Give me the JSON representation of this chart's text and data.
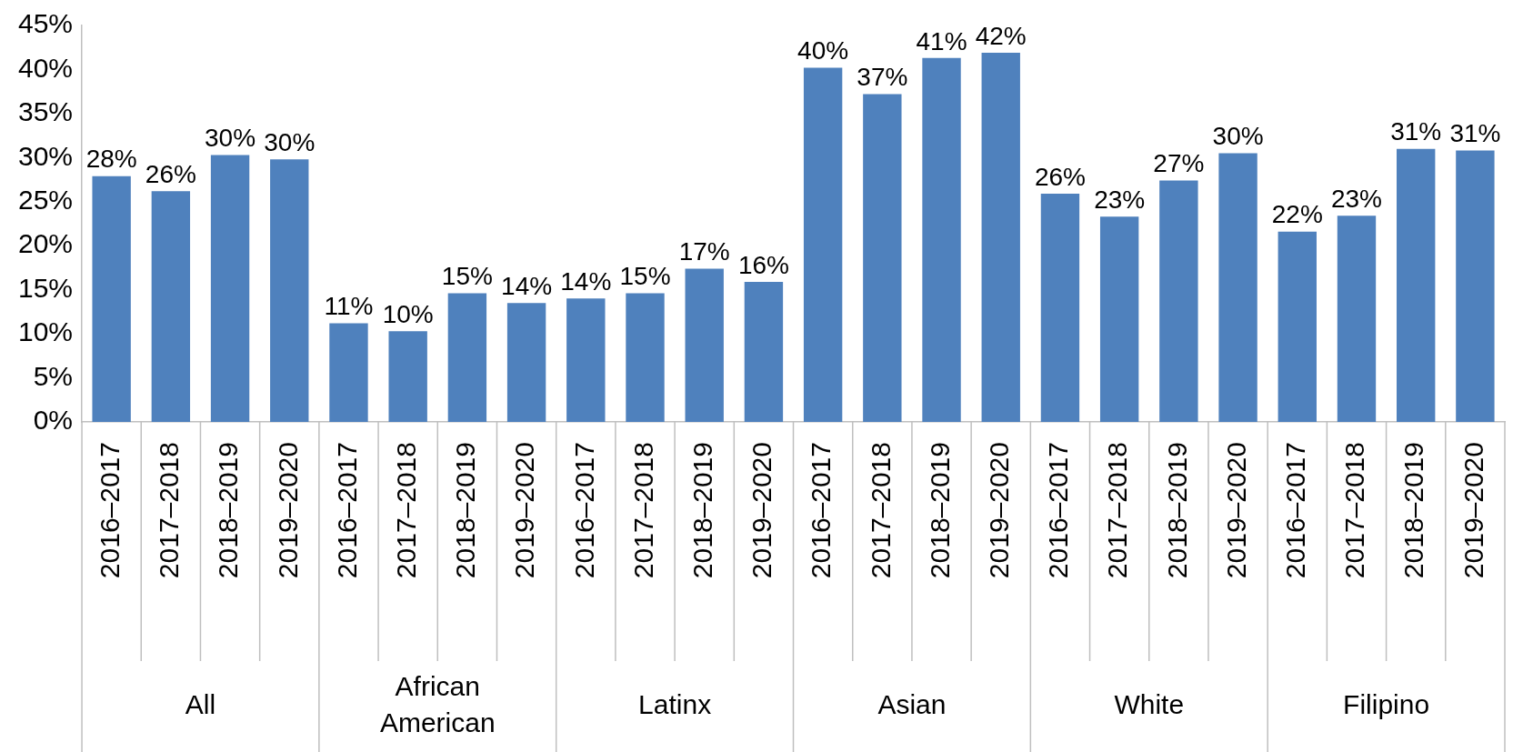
{
  "chart_data": {
    "type": "bar",
    "categories": [
      "2016–2017",
      "2017–2018",
      "2018–2019",
      "2019–2020",
      "2016–2017",
      "2017–2018",
      "2018–2019",
      "2019–2020",
      "2016–2017",
      "2017–2018",
      "2018–2019",
      "2019–2020",
      "2016–2017",
      "2017–2018",
      "2018–2019",
      "2019–2020",
      "2016–2017",
      "2017–2018",
      "2018–2019",
      "2019–2020",
      "2016–2017",
      "2017–2018",
      "2018–2019",
      "2019–2020"
    ],
    "values": [
      27.9,
      26.2,
      30.3,
      29.8,
      11.2,
      10.3,
      14.6,
      13.5,
      14.0,
      14.6,
      17.4,
      15.9,
      40.2,
      37.2,
      41.3,
      41.9,
      25.9,
      23.3,
      27.4,
      30.5,
      21.6,
      23.4,
      31.0,
      30.8
    ],
    "value_labels": [
      "28%",
      "26%",
      "30%",
      "30%",
      "11%",
      "10%",
      "15%",
      "14%",
      "14%",
      "15%",
      "17%",
      "16%",
      "40%",
      "37%",
      "41%",
      "42%",
      "26%",
      "23%",
      "27%",
      "30%",
      "22%",
      "23%",
      "31%",
      "31%"
    ],
    "color": "#4f81bd",
    "annotations": [
      "All",
      "African American",
      "Latinx",
      "Asian",
      "White",
      "Filipino"
    ],
    "ylim": [
      0,
      45
    ],
    "yticks": [
      {
        "value": 0,
        "label": "0%"
      },
      {
        "value": 5,
        "label": "5%"
      },
      {
        "value": 10,
        "label": "10%"
      },
      {
        "value": 15,
        "label": "15%"
      },
      {
        "value": 20,
        "label": "20%"
      },
      {
        "value": 25,
        "label": "25%"
      },
      {
        "value": 30,
        "label": "30%"
      },
      {
        "value": 35,
        "label": "35%"
      },
      {
        "value": 40,
        "label": "40%"
      },
      {
        "value": 45,
        "label": "45%"
      }
    ],
    "legend": false
  }
}
